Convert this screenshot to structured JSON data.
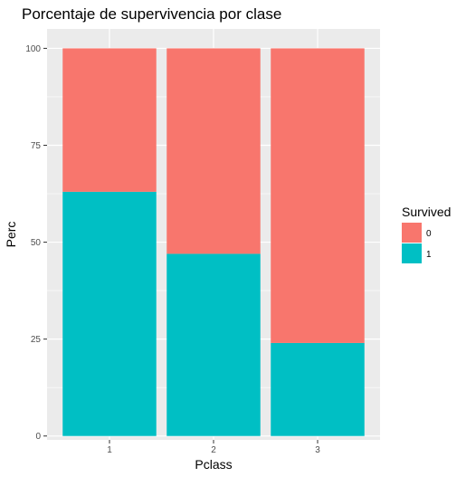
{
  "title": "Porcentaje de supervivencia por clase",
  "chart_data": {
    "type": "bar",
    "stacked": true,
    "categories": [
      "1",
      "2",
      "3"
    ],
    "series": [
      {
        "name": "0",
        "values": [
          37,
          53,
          76
        ],
        "color": "#F8766D"
      },
      {
        "name": "1",
        "values": [
          63,
          47,
          24
        ],
        "color": "#00BFC4"
      }
    ],
    "xlabel": "Pclass",
    "ylabel": "Perc",
    "ylim": [
      -1,
      105
    ],
    "y_ticks": [
      0,
      25,
      50,
      75,
      100
    ],
    "grid": true,
    "legend": {
      "title": "Survived",
      "position": "right"
    },
    "panel_background": "#EBEBEB",
    "grid_color": "#FFFFFF"
  }
}
